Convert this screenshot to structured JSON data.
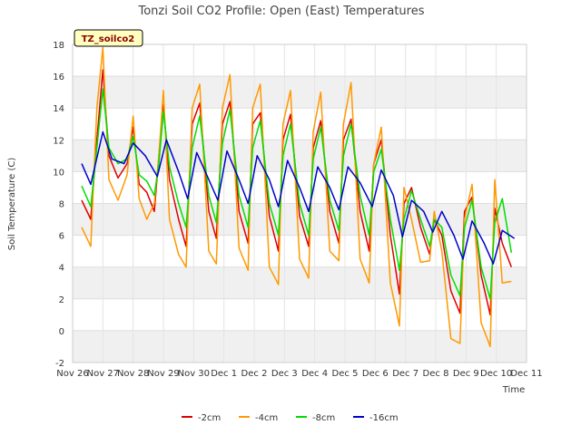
{
  "chart_data": {
    "type": "line",
    "title": "Tonzi Soil CO2 Profile: Open (East) Temperatures",
    "xlabel": "Time",
    "ylabel": "Soil Temperature (C)",
    "ylim": [
      -2,
      18
    ],
    "yticks": [
      -2,
      0,
      2,
      4,
      6,
      8,
      10,
      12,
      14,
      16,
      18
    ],
    "xlim": [
      0,
      15
    ],
    "xticks": [
      {
        "x": 0,
        "label": "Nov 26"
      },
      {
        "x": 1,
        "label": "Nov 27"
      },
      {
        "x": 2,
        "label": "Nov 28"
      },
      {
        "x": 3,
        "label": "Nov 29"
      },
      {
        "x": 4,
        "label": "Nov 30"
      },
      {
        "x": 5,
        "label": "Dec 1"
      },
      {
        "x": 6,
        "label": "Dec 2"
      },
      {
        "x": 7,
        "label": "Dec 3"
      },
      {
        "x": 8,
        "label": "Dec 4"
      },
      {
        "x": 9,
        "label": "Dec 5"
      },
      {
        "x": 10,
        "label": "Dec 6"
      },
      {
        "x": 11,
        "label": "Dec 7"
      },
      {
        "x": 12,
        "label": "Dec 8"
      },
      {
        "x": 13,
        "label": "Dec 9"
      },
      {
        "x": 14,
        "label": "Dec 10"
      },
      {
        "x": 15,
        "label": "Dec 11"
      }
    ],
    "grid": true,
    "legend_position": "bottom",
    "tag": "TZ_soilco2",
    "series": [
      {
        "name": "-2cm",
        "color": "#dd0000",
        "x": [
          0.3,
          0.6,
          0.8,
          1.0,
          1.2,
          1.5,
          1.8,
          2.0,
          2.2,
          2.45,
          2.7,
          2.85,
          3.0,
          3.2,
          3.5,
          3.75,
          3.95,
          4.2,
          4.5,
          4.75,
          4.95,
          5.2,
          5.5,
          5.8,
          5.95,
          6.2,
          6.5,
          6.8,
          6.95,
          7.2,
          7.5,
          7.8,
          7.95,
          8.2,
          8.5,
          8.8,
          8.95,
          9.2,
          9.5,
          9.8,
          9.95,
          10.2,
          10.5,
          10.8,
          10.95,
          11.2,
          11.5,
          11.8,
          11.95,
          12.2,
          12.5,
          12.8,
          12.95,
          13.2,
          13.5,
          13.8,
          13.95,
          14.2,
          14.5
        ],
        "y": [
          8.2,
          7.0,
          12.0,
          16.4,
          11.0,
          9.6,
          10.5,
          12.8,
          9.2,
          8.7,
          7.5,
          11.0,
          14.2,
          9.5,
          7.0,
          5.3,
          13.0,
          14.3,
          7.5,
          5.8,
          13.0,
          14.4,
          7.5,
          5.5,
          13.0,
          13.7,
          7.2,
          5.0,
          12.0,
          13.6,
          7.2,
          5.3,
          11.5,
          13.2,
          7.5,
          5.5,
          12.0,
          13.3,
          7.5,
          5.0,
          10.5,
          12.0,
          6.0,
          2.3,
          8.0,
          9.0,
          6.5,
          4.8,
          7.0,
          6.0,
          2.5,
          1.1,
          7.5,
          8.4,
          3.5,
          1.0,
          7.7,
          5.5,
          4.0
        ]
      },
      {
        "name": "-4cm",
        "color": "#ff9900",
        "x": [
          0.3,
          0.6,
          0.8,
          1.0,
          1.2,
          1.5,
          1.8,
          2.0,
          2.2,
          2.45,
          2.7,
          2.85,
          3.0,
          3.2,
          3.5,
          3.75,
          3.95,
          4.2,
          4.5,
          4.75,
          4.95,
          5.2,
          5.5,
          5.8,
          5.95,
          6.2,
          6.5,
          6.8,
          6.95,
          7.2,
          7.5,
          7.8,
          7.95,
          8.2,
          8.5,
          8.8,
          8.95,
          9.2,
          9.5,
          9.8,
          9.95,
          10.2,
          10.5,
          10.8,
          10.95,
          11.2,
          11.5,
          11.8,
          11.95,
          12.2,
          12.5,
          12.8,
          12.95,
          13.2,
          13.5,
          13.8,
          13.95,
          14.2,
          14.5
        ],
        "y": [
          6.5,
          5.3,
          14.0,
          17.8,
          9.5,
          8.2,
          9.8,
          13.5,
          8.3,
          7.0,
          8.0,
          11.0,
          15.1,
          7.0,
          4.8,
          4.0,
          14.0,
          15.5,
          5.0,
          4.2,
          14.0,
          16.1,
          5.2,
          3.8,
          14.0,
          15.5,
          4.0,
          2.9,
          13.0,
          15.1,
          4.5,
          3.3,
          12.5,
          15.0,
          5.0,
          4.4,
          13.0,
          15.6,
          4.5,
          3.0,
          10.5,
          12.8,
          3.0,
          0.3,
          9.0,
          7.0,
          4.3,
          4.4,
          7.5,
          5.0,
          -0.5,
          -0.8,
          7.0,
          9.2,
          0.5,
          -1.0,
          9.5,
          3.0,
          3.1
        ]
      },
      {
        "name": "-8cm",
        "color": "#00dd00",
        "x": [
          0.3,
          0.6,
          0.8,
          1.0,
          1.2,
          1.5,
          1.8,
          2.0,
          2.2,
          2.45,
          2.7,
          2.85,
          3.0,
          3.2,
          3.5,
          3.75,
          3.95,
          4.2,
          4.5,
          4.75,
          4.95,
          5.2,
          5.5,
          5.8,
          5.95,
          6.2,
          6.5,
          6.8,
          6.95,
          7.2,
          7.5,
          7.8,
          7.95,
          8.2,
          8.5,
          8.8,
          8.95,
          9.2,
          9.5,
          9.8,
          9.95,
          10.2,
          10.5,
          10.8,
          10.95,
          11.2,
          11.5,
          11.8,
          11.95,
          12.2,
          12.5,
          12.8,
          12.95,
          13.2,
          13.5,
          13.8,
          13.95,
          14.2,
          14.5
        ],
        "y": [
          9.1,
          7.8,
          11.5,
          15.2,
          11.5,
          10.5,
          10.8,
          12.2,
          9.8,
          9.4,
          8.5,
          10.5,
          13.8,
          10.3,
          8.0,
          6.5,
          11.5,
          13.5,
          8.5,
          6.8,
          11.8,
          13.9,
          8.5,
          6.5,
          11.5,
          13.2,
          8.0,
          6.0,
          11.0,
          13.0,
          8.0,
          6.0,
          10.8,
          12.8,
          8.2,
          6.3,
          11.0,
          13.0,
          8.5,
          6.0,
          10.0,
          11.4,
          7.0,
          3.8,
          7.0,
          8.8,
          7.0,
          5.3,
          7.0,
          6.5,
          3.5,
          2.2,
          6.5,
          8.2,
          4.0,
          2.0,
          6.8,
          8.3,
          4.9
        ]
      },
      {
        "name": "-16cm",
        "color": "#0000cc",
        "x": [
          0.3,
          0.6,
          1.0,
          1.3,
          1.7,
          2.0,
          2.4,
          2.8,
          3.1,
          3.5,
          3.8,
          4.1,
          4.5,
          4.8,
          5.1,
          5.5,
          5.8,
          6.1,
          6.5,
          6.8,
          7.1,
          7.5,
          7.8,
          8.1,
          8.5,
          8.8,
          9.1,
          9.5,
          9.9,
          10.2,
          10.6,
          10.9,
          11.2,
          11.6,
          11.9,
          12.2,
          12.6,
          12.9,
          13.2,
          13.6,
          13.9,
          14.2,
          14.6
        ],
        "y": [
          10.5,
          9.2,
          12.5,
          10.8,
          10.5,
          11.8,
          11.0,
          9.7,
          12.0,
          10.0,
          8.3,
          11.2,
          9.5,
          8.2,
          11.3,
          9.5,
          8.0,
          11.0,
          9.5,
          7.8,
          10.7,
          9.0,
          7.5,
          10.3,
          9.0,
          7.6,
          10.3,
          9.3,
          7.8,
          10.1,
          8.5,
          5.9,
          8.2,
          7.5,
          6.2,
          7.5,
          6.0,
          4.5,
          6.9,
          5.5,
          4.2,
          6.3,
          5.8
        ]
      }
    ]
  }
}
